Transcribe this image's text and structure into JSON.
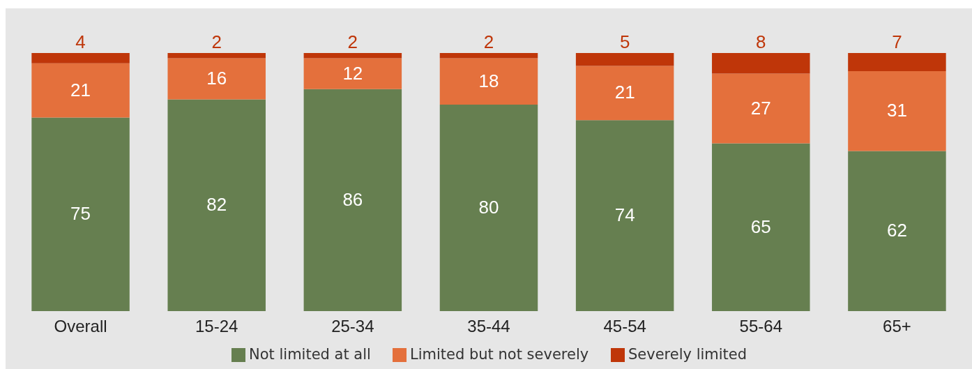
{
  "chart_data": {
    "type": "bar",
    "stacked": true,
    "data_labels": true,
    "legend": "bottom",
    "categories": [
      "Overall",
      "15-24",
      "25-34",
      "35-44",
      "45-54",
      "55-64",
      "65+"
    ],
    "series": [
      {
        "name": "Not limited at all",
        "color": "#667f50",
        "values": [
          75,
          82,
          86,
          80,
          74,
          65,
          62
        ]
      },
      {
        "name": "Limited but not severely",
        "color": "#e4703c",
        "values": [
          21,
          16,
          12,
          18,
          21,
          27,
          31
        ]
      },
      {
        "name": "Severely limited",
        "color": "#bf3609",
        "values": [
          4,
          2,
          2,
          2,
          5,
          8,
          7
        ]
      }
    ]
  }
}
